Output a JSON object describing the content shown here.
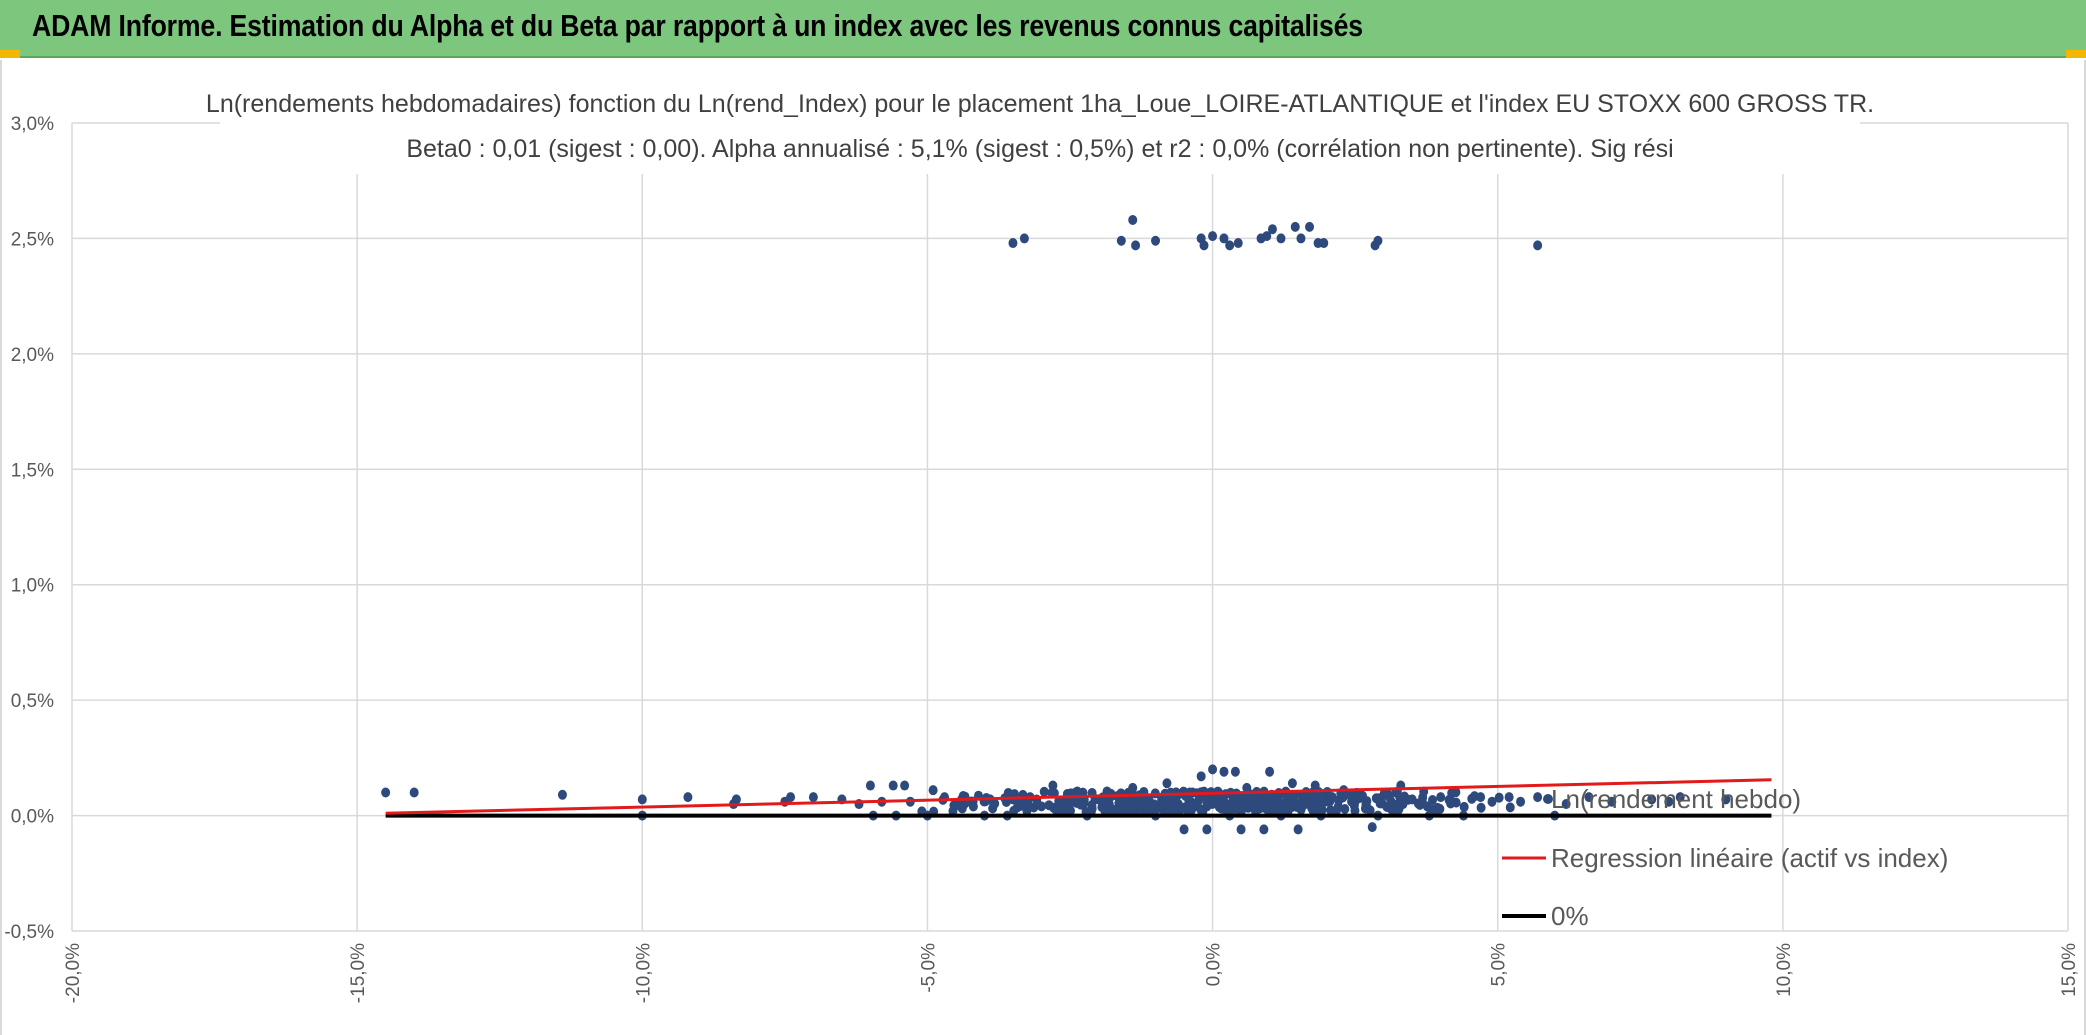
{
  "header": {
    "title": "ADAM Informe. Estimation du Alpha et du Beta par rapport à un index avec les revenus connus capitalisés"
  },
  "colors": {
    "header_bg": "#7dc67e",
    "scatter": "#2e4a7d",
    "regression": "#e31a1c",
    "zero_line": "#000000",
    "grid": "#d9d9d9"
  },
  "chart_data": {
    "type": "scatter",
    "title_line1": "Ln(rendements hebdomadaires) fonction du Ln(rend_Index) pour le placement 1ha_Loue_LOIRE-ATLANTIQUE et l'index EU STOXX 600 GROSS TR.",
    "title_line2": "Beta0 : 0,01 (sigest : 0,00). Alpha annualisé : 5,1% (sigest : 0,5%) et r2 : 0,0% (corrélation non pertinente). Sig rési",
    "xlim": [
      -20,
      15
    ],
    "ylim": [
      -0.5,
      3.0
    ],
    "x_ticks": [
      -20,
      -15,
      -10,
      -5,
      0,
      5,
      10,
      15
    ],
    "x_tick_labels": [
      "-20,0%",
      "-15,0%",
      "-10,0%",
      "-5,0%",
      "0,0%",
      "5,0%",
      "10,0%",
      "15,0%"
    ],
    "y_ticks": [
      -0.5,
      0,
      0.5,
      1.0,
      1.5,
      2.0,
      2.5,
      3.0
    ],
    "y_tick_labels": [
      "-0,5%",
      "0,0%",
      "0,5%",
      "1,0%",
      "1,5%",
      "2,0%",
      "2,5%",
      "3,0%"
    ],
    "grid": true,
    "legend_position": "bottom-right",
    "legend": [
      {
        "label": "Ln(rendement hebdo)",
        "kind": "marker"
      },
      {
        "label": "Regression linéaire (actif vs index)",
        "kind": "line-red"
      },
      {
        "label": "0%",
        "kind": "line-black"
      }
    ],
    "regression": {
      "x": [
        -14.5,
        9.8
      ],
      "y": [
        0.01,
        0.155
      ]
    },
    "zero_line": {
      "x": [
        -14.5,
        9.8
      ],
      "y": [
        0.0,
        0.0
      ]
    },
    "series": [
      {
        "name": "Ln(rendement hebdo)",
        "points_high": [
          [
            -3.5,
            2.48
          ],
          [
            -3.3,
            2.5
          ],
          [
            -1.6,
            2.49
          ],
          [
            -1.4,
            2.58
          ],
          [
            -1.35,
            2.47
          ],
          [
            -1.0,
            2.49
          ],
          [
            -0.2,
            2.5
          ],
          [
            -0.15,
            2.47
          ],
          [
            0.0,
            2.51
          ],
          [
            0.2,
            2.5
          ],
          [
            0.3,
            2.47
          ],
          [
            0.45,
            2.48
          ],
          [
            0.85,
            2.5
          ],
          [
            0.95,
            2.51
          ],
          [
            1.05,
            2.54
          ],
          [
            1.2,
            2.5
          ],
          [
            1.45,
            2.55
          ],
          [
            1.55,
            2.5
          ],
          [
            1.7,
            2.55
          ],
          [
            1.85,
            2.48
          ],
          [
            1.95,
            2.48
          ],
          [
            2.85,
            2.47
          ],
          [
            2.9,
            2.49
          ],
          [
            5.7,
            2.47
          ]
        ],
        "points_low": [
          [
            -14.5,
            0.1
          ],
          [
            -14.0,
            0.1
          ],
          [
            -11.4,
            0.09
          ],
          [
            -10.0,
            0.07
          ],
          [
            -10.0,
            0.0
          ],
          [
            -9.2,
            0.08
          ],
          [
            -8.4,
            0.05
          ],
          [
            -8.35,
            0.07
          ],
          [
            -7.5,
            0.06
          ],
          [
            -7.4,
            0.08
          ],
          [
            -7.0,
            0.08
          ],
          [
            -6.5,
            0.07
          ],
          [
            -6.2,
            0.05
          ],
          [
            -6.0,
            0.13
          ],
          [
            -5.95,
            0.0
          ],
          [
            -5.8,
            0.06
          ],
          [
            -5.6,
            0.13
          ],
          [
            -5.55,
            0.0
          ],
          [
            -5.4,
            0.13
          ],
          [
            -5.3,
            0.06
          ],
          [
            -5.0,
            0.0
          ],
          [
            -4.9,
            0.11
          ],
          [
            -4.7,
            0.08
          ],
          [
            -4.4,
            0.07
          ],
          [
            -4.2,
            0.06
          ],
          [
            -4.0,
            0.0
          ],
          [
            -3.9,
            0.07
          ],
          [
            -3.6,
            0.0
          ],
          [
            -3.5,
            0.07
          ],
          [
            -3.2,
            0.08
          ],
          [
            -3.0,
            0.04
          ],
          [
            -2.8,
            0.13
          ],
          [
            -2.6,
            0.06
          ],
          [
            -2.4,
            0.1
          ],
          [
            -2.2,
            0.0
          ],
          [
            -2.0,
            0.07
          ],
          [
            -1.8,
            0.09
          ],
          [
            -1.6,
            0.04
          ],
          [
            -1.4,
            0.12
          ],
          [
            -1.2,
            0.06
          ],
          [
            -1.0,
            0.0
          ],
          [
            -0.8,
            0.14
          ],
          [
            -0.6,
            0.05
          ],
          [
            -0.5,
            -0.06
          ],
          [
            -0.4,
            0.1
          ],
          [
            -0.2,
            0.17
          ],
          [
            -0.1,
            -0.06
          ],
          [
            0.0,
            0.2
          ],
          [
            0.1,
            0.07
          ],
          [
            0.2,
            0.19
          ],
          [
            0.3,
            0.0
          ],
          [
            0.4,
            0.19
          ],
          [
            0.5,
            -0.06
          ],
          [
            0.6,
            0.12
          ],
          [
            0.8,
            0.04
          ],
          [
            0.9,
            -0.06
          ],
          [
            1.0,
            0.19
          ],
          [
            1.1,
            0.08
          ],
          [
            1.2,
            0.0
          ],
          [
            1.4,
            0.14
          ],
          [
            1.5,
            -0.06
          ],
          [
            1.6,
            0.06
          ],
          [
            1.8,
            0.13
          ],
          [
            1.9,
            0.0
          ],
          [
            2.1,
            0.08
          ],
          [
            2.3,
            0.11
          ],
          [
            2.5,
            0.06
          ],
          [
            2.7,
            0.04
          ],
          [
            2.8,
            -0.05
          ],
          [
            2.9,
            0.0
          ],
          [
            3.1,
            0.08
          ],
          [
            3.3,
            0.13
          ],
          [
            3.5,
            0.07
          ],
          [
            3.8,
            0.0
          ],
          [
            4.0,
            0.08
          ],
          [
            4.2,
            0.06
          ],
          [
            4.4,
            0.0
          ],
          [
            4.7,
            0.08
          ],
          [
            4.9,
            0.06
          ],
          [
            5.2,
            0.08
          ],
          [
            5.4,
            0.06
          ],
          [
            5.7,
            0.08
          ],
          [
            6.0,
            0.0
          ],
          [
            6.2,
            0.05
          ],
          [
            6.6,
            0.08
          ],
          [
            7.0,
            0.06
          ],
          [
            7.7,
            0.07
          ],
          [
            8.0,
            0.06
          ],
          [
            8.2,
            0.08
          ],
          [
            9.0,
            0.07
          ]
        ]
      }
    ]
  }
}
